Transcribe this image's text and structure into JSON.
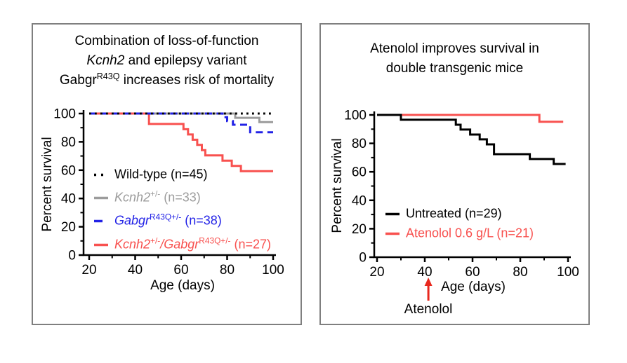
{
  "colors": {
    "black": "#000000",
    "gray": "#9c9c9c",
    "blue": "#2222e6",
    "red": "#f8514f",
    "arrow_red": "#e8281e",
    "panel_border": "#7f7f7f"
  },
  "chart_data": [
    {
      "id": "left",
      "type": "line",
      "title_lines": [
        [
          {
            "t": "Combination of loss-of-function"
          }
        ],
        [
          {
            "t": "Kcnh2",
            "i": true
          },
          {
            "t": " and epilepsy variant"
          }
        ],
        [
          {
            "t": "Gabgr"
          },
          {
            "t": "R43Q",
            "sup": true
          },
          {
            "t": " increases risk of mortality"
          }
        ]
      ],
      "xlabel": "Age (days)",
      "ylabel": "Percent survival",
      "xlim": [
        20,
        100
      ],
      "ylim": [
        0,
        100
      ],
      "xticks": [
        20,
        40,
        60,
        80,
        100
      ],
      "xminor": [
        30,
        50,
        70,
        90
      ],
      "yticks": [
        0,
        20,
        40,
        60,
        80,
        100
      ],
      "yminor": [
        10,
        30,
        50,
        70,
        90
      ],
      "grid": false,
      "legend_position": "inside-lower-left",
      "series": [
        {
          "key": "kcnh2",
          "color_key": "gray",
          "dash": "solid",
          "legend_row": 1,
          "legend": [
            {
              "t": "Kcnh2",
              "i": true
            },
            {
              "t": "+/-",
              "sup": true
            },
            {
              "t": " (n=33)"
            }
          ],
          "points": [
            [
              20,
              100
            ],
            [
              83.5,
              100
            ],
            [
              83.5,
              97
            ],
            [
              94,
              97
            ],
            [
              94,
              93.9
            ],
            [
              100,
              93.9
            ]
          ]
        },
        {
          "key": "double-mutant",
          "color_key": "red",
          "dash": "solid",
          "legend_row": 3,
          "legend": [
            {
              "t": "Kcnh2",
              "i": true
            },
            {
              "t": "+/-",
              "sup": true
            },
            {
              "t": "/Gabgr",
              "i": true
            },
            {
              "t": "R43Q+/-",
              "sup": true
            },
            {
              "t": " (n=27)"
            }
          ],
          "points": [
            [
              20,
              100
            ],
            [
              46,
              100
            ],
            [
              46,
              92.6
            ],
            [
              61,
              92.6
            ],
            [
              61,
              88.9
            ],
            [
              63,
              88.9
            ],
            [
              63,
              85.2
            ],
            [
              65,
              85.2
            ],
            [
              65,
              81.5
            ],
            [
              67,
              81.5
            ],
            [
              67,
              77.8
            ],
            [
              69,
              77.8
            ],
            [
              69,
              74.1
            ],
            [
              70.5,
              74.1
            ],
            [
              70.5,
              70.4
            ],
            [
              78,
              70.4
            ],
            [
              78,
              66.7
            ],
            [
              82,
              66.7
            ],
            [
              82,
              63
            ],
            [
              86,
              63
            ],
            [
              86,
              59.3
            ],
            [
              100,
              59.3
            ]
          ]
        },
        {
          "key": "gabgr",
          "color_key": "blue",
          "dash": "dash",
          "legend_row": 2,
          "legend": [
            {
              "t": "Gabgr",
              "i": true
            },
            {
              "t": "R43Q+/-",
              "sup": true
            },
            {
              "t": " (n=38)"
            }
          ],
          "points": [
            [
              20,
              100
            ],
            [
              78,
              100
            ],
            [
              78,
              97.4
            ],
            [
              80,
              97.4
            ],
            [
              80,
              94.7
            ],
            [
              82.5,
              94.7
            ],
            [
              82.5,
              92.1
            ],
            [
              90,
              92.1
            ],
            [
              90,
              86.8
            ],
            [
              100,
              86.8
            ]
          ]
        },
        {
          "key": "wild-type",
          "color_key": "black",
          "dash": "dot",
          "legend_row": 0,
          "legend": [
            {
              "t": "Wild-type (n=45)"
            }
          ],
          "points": [
            [
              20,
              100
            ],
            [
              100,
              100
            ]
          ]
        }
      ]
    },
    {
      "id": "right",
      "type": "line",
      "title_lines": [
        [
          {
            "t": "Atenolol improves survival in"
          }
        ],
        [
          {
            "t": "double transgenic mice"
          }
        ]
      ],
      "xlabel": "Age (days)",
      "ylabel": "Percent survival",
      "xlim": [
        20,
        100
      ],
      "ylim": [
        0,
        100
      ],
      "xticks": [
        20,
        40,
        60,
        80,
        100
      ],
      "xminor": [
        30,
        50,
        70,
        90
      ],
      "yticks": [
        0,
        20,
        40,
        60,
        80,
        100
      ],
      "yminor": [
        10,
        30,
        50,
        70,
        90
      ],
      "grid": false,
      "legend_position": "inside-lower-left",
      "annotation": {
        "label": "Atenolol",
        "arrow_day": 41.5
      },
      "series": [
        {
          "key": "atenolol",
          "color_key": "red",
          "dash": "solid",
          "legend_row": 1,
          "legend": [
            {
              "t": "Atenolol 0.6 g/L (n=21)"
            }
          ],
          "points": [
            [
              20,
              100
            ],
            [
              88,
              100
            ],
            [
              88,
              95.2
            ],
            [
              98,
              95.2
            ]
          ]
        },
        {
          "key": "untreated",
          "color_key": "black",
          "dash": "solid",
          "legend_row": 0,
          "legend": [
            {
              "t": "Untreated (n=29)"
            }
          ],
          "points": [
            [
              20,
              100
            ],
            [
              30,
              100
            ],
            [
              30,
              96.6
            ],
            [
              53,
              96.6
            ],
            [
              53,
              93.1
            ],
            [
              55,
              93.1
            ],
            [
              55,
              89.7
            ],
            [
              59,
              89.7
            ],
            [
              59,
              86.2
            ],
            [
              63,
              86.2
            ],
            [
              63,
              82.8
            ],
            [
              66,
              82.8
            ],
            [
              66,
              79.3
            ],
            [
              69,
              79.3
            ],
            [
              69,
              72.4
            ],
            [
              84,
              72.4
            ],
            [
              84,
              69
            ],
            [
              94,
              69
            ],
            [
              94,
              65.5
            ],
            [
              99,
              65.5
            ]
          ]
        }
      ]
    }
  ]
}
